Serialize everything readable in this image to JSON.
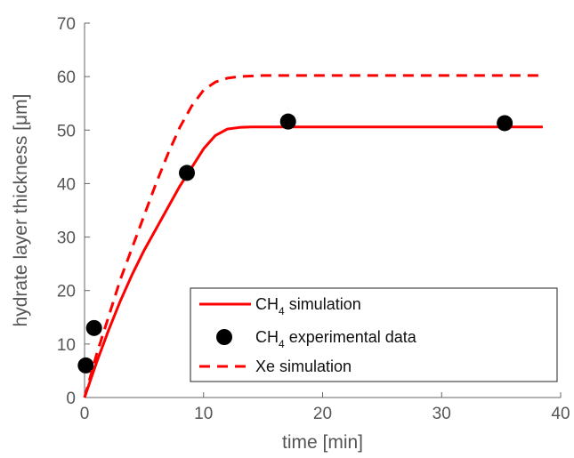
{
  "chart_data": {
    "type": "line",
    "xlabel": "time [min]",
    "ylabel": "hydrate layer thickness [μm]",
    "xlim": [
      0,
      40
    ],
    "ylim": [
      0,
      70
    ],
    "xticks": [
      0,
      10,
      20,
      30,
      40
    ],
    "yticks": [
      0,
      10,
      20,
      30,
      40,
      50,
      60,
      70
    ],
    "grid": false,
    "legend_position": "bottom-right",
    "series": [
      {
        "name": "CH4 simulation",
        "legend_main": "CH",
        "legend_sub": "4",
        "legend_rest": " simulation",
        "style": "solid",
        "color": "#ff0000",
        "x": [
          0,
          1,
          2,
          3,
          4,
          5,
          6,
          7,
          8,
          9,
          10,
          11,
          12,
          13,
          14,
          15,
          20,
          25,
          30,
          35,
          38.5
        ],
        "y": [
          0,
          6.5,
          12.5,
          18,
          23,
          27.5,
          31.5,
          35.5,
          39.5,
          43,
          46.5,
          49,
          50.2,
          50.5,
          50.6,
          50.6,
          50.6,
          50.6,
          50.6,
          50.6,
          50.6
        ]
      },
      {
        "name": "CH4 experimental data",
        "legend_main": "CH",
        "legend_sub": "4",
        "legend_rest": " experimental data",
        "style": "markers",
        "color": "#000000",
        "x": [
          0.1,
          0.8,
          8.6,
          17.1,
          35.3
        ],
        "y": [
          6,
          13,
          42,
          51.6,
          51.3
        ]
      },
      {
        "name": "Xe simulation",
        "legend_main": "Xe",
        "legend_sub": "",
        "legend_rest": "   simulation",
        "style": "dashed",
        "color": "#ff0000",
        "x": [
          0,
          1,
          2,
          3,
          4,
          5,
          6,
          7,
          8,
          9,
          10,
          11,
          12,
          13,
          14,
          15,
          20,
          25,
          30,
          35,
          38.5
        ],
        "y": [
          0,
          8,
          15,
          22,
          28,
          34,
          40,
          45.5,
          50.5,
          54.5,
          57.5,
          59,
          59.7,
          60,
          60.1,
          60.2,
          60.2,
          60.2,
          60.2,
          60.2,
          60.2
        ]
      }
    ]
  }
}
